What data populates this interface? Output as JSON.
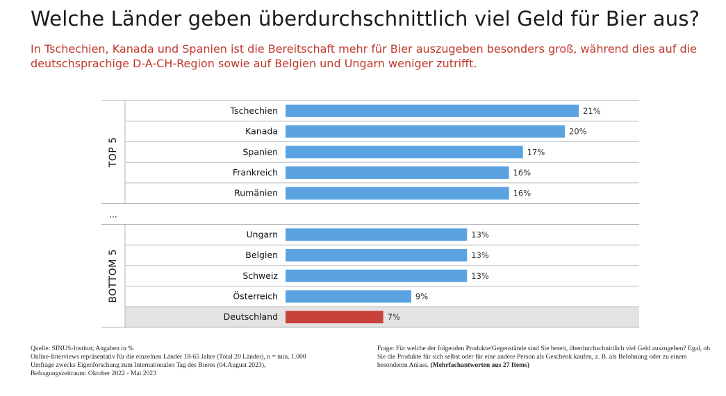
{
  "title": "Welche Länder geben überdurchschnittlich viel Geld für Bier aus?",
  "subtitle": "In Tschechien, Kanada und Spanien ist die Bereitschaft mehr für Bier auszugeben besonders groß, während dies auf die deutschsprachige D-A-CH-Region sowie auf Belgien und Ungarn weniger zutrifft.",
  "chart_data": {
    "type": "bar",
    "orientation": "horizontal",
    "groups": [
      {
        "label": "TOP 5",
        "categories": [
          "Tschechien",
          "Kanada",
          "Spanien",
          "Frankreich",
          "Rumänien"
        ],
        "values": [
          21,
          20,
          17,
          16,
          16
        ],
        "value_labels": [
          "21%",
          "20%",
          "17%",
          "16%",
          "16%"
        ]
      },
      {
        "label": "BOTTOM 5",
        "categories": [
          "Ungarn",
          "Belgien",
          "Schweiz",
          "Österreich",
          "Deutschland"
        ],
        "values": [
          13,
          13,
          13,
          9,
          7
        ],
        "value_labels": [
          "13%",
          "13%",
          "13%",
          "9%",
          "7%"
        ]
      }
    ],
    "separator_label": "...",
    "highlight": "Deutschland",
    "colors": {
      "bar": "#5ba3e0",
      "highlight_bar": "#c9423a",
      "highlight_row": "#e3e3e3"
    },
    "unit": "%"
  },
  "footer": {
    "left": [
      "Quelle: SINUS-Institut; Angaben in %",
      "Online-Interviews repräsentativ für die einzelnen Länder 18-65 Jahre (Total 20 Länder), n = min. 1.000",
      "Umfrage zwecks Eigenforschung zum Internationalen Tag des Bieres (04.August 2023),",
      "Befragungszeitraum: Oktober 2022 - Mai 2023"
    ],
    "right_text": "Frage: Für welche der folgenden Produkte/Gegenstände sind Sie bereit, überdurchschnittlich viel Geld auszugeben? Egal, ob Sie die Produkte für sich selbst oder für eine andere Person als Geschenk kaufen, z. B. als Belohnung oder zu einem besonderen Anlass.",
    "right_bold": "(Mehrfachantworten aus 27 Items)"
  }
}
